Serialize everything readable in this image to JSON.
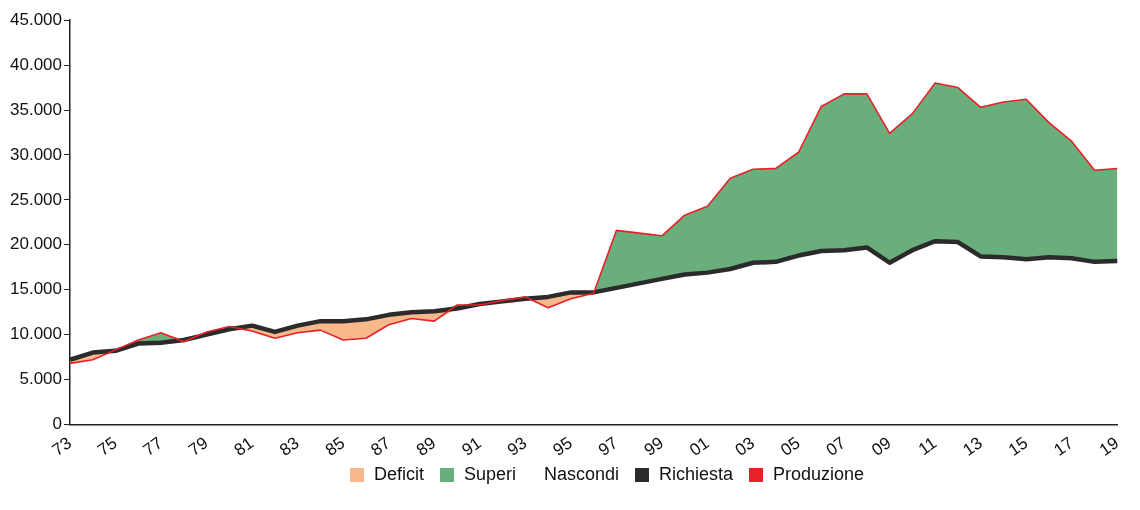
{
  "chart_data": {
    "type": "line",
    "categories": [
      "73",
      null,
      "75",
      null,
      "77",
      null,
      "79",
      null,
      "81",
      null,
      "83",
      null,
      "85",
      null,
      "87",
      null,
      "89",
      null,
      "91",
      null,
      "93",
      null,
      "95",
      null,
      "97",
      null,
      "99",
      null,
      "01",
      null,
      "03",
      null,
      "05",
      null,
      "07",
      null,
      "09",
      null,
      "11",
      null,
      "13",
      null,
      "15",
      null,
      "17",
      null,
      "19"
    ],
    "series": [
      {
        "name": "Deficit",
        "type": "area",
        "color": "#f7b98b",
        "values": [
          null,
          null,
          null,
          null,
          null,
          null,
          null,
          null,
          null,
          null,
          null,
          null,
          null,
          null,
          null,
          null,
          null,
          null,
          null,
          null,
          null,
          null,
          null,
          null,
          null,
          null,
          null,
          null,
          null,
          null,
          null,
          null,
          null,
          null,
          null,
          null,
          null,
          null,
          null,
          null,
          null,
          null,
          null,
          null,
          null,
          null,
          null
        ],
        "lower": [
          6800,
          7200,
          8200,
          9000,
          9100,
          9200,
          10000,
          10600,
          10400,
          9600,
          10200,
          10500,
          9400,
          9600,
          11100,
          11800,
          11500,
          12900,
          13300,
          13700,
          14000,
          13000,
          14000,
          14600,
          15200,
          15700,
          16200,
          16700,
          16900,
          17300,
          18000,
          18100,
          18800,
          19300,
          19400,
          19700,
          18000,
          19400,
          20400,
          20300,
          18700,
          18600,
          18400,
          18600,
          18500,
          18100,
          18200
        ],
        "upper": [
          7200,
          8000,
          8200,
          9000,
          9100,
          9400,
          10000,
          10600,
          11000,
          10300,
          11000,
          11500,
          11500,
          11700,
          12200,
          12500,
          12600,
          12900,
          13400,
          13700,
          14000,
          14200,
          14700,
          14700,
          15200,
          15700,
          16200,
          16700,
          16900,
          17300,
          18000,
          18100,
          18800,
          19300,
          19400,
          19700,
          18000,
          19400,
          20400,
          20300,
          18700,
          18600,
          18400,
          18600,
          18500,
          18100,
          18200
        ]
      },
      {
        "name": "Superi",
        "type": "area",
        "color": "#6aae7c",
        "values": [
          null,
          null,
          null,
          null,
          null,
          null,
          null,
          null,
          null,
          null,
          null,
          null,
          null,
          null,
          null,
          null,
          null,
          null,
          null,
          null,
          null,
          null,
          null,
          null,
          null,
          null,
          null,
          null,
          null,
          null,
          null,
          null,
          null,
          null,
          null,
          null,
          null,
          null,
          null,
          null,
          null,
          null,
          null,
          null,
          null,
          null,
          null
        ],
        "lower": [
          7200,
          8000,
          8200,
          9000,
          9100,
          9400,
          10000,
          10600,
          11000,
          10300,
          11000,
          11500,
          11500,
          11700,
          12200,
          12500,
          12600,
          12900,
          13400,
          13700,
          14000,
          14200,
          14700,
          14700,
          15200,
          15700,
          16200,
          16700,
          16900,
          17300,
          18000,
          18100,
          18800,
          19300,
          19400,
          19700,
          18000,
          19400,
          20400,
          20300,
          18700,
          18600,
          18400,
          18600,
          18500,
          18100,
          18200
        ],
        "upper": [
          7200,
          8000,
          8300,
          9400,
          10200,
          9400,
          10300,
          10900,
          11000,
          10300,
          11000,
          11500,
          11500,
          11700,
          12200,
          12500,
          12600,
          13300,
          13400,
          13800,
          14200,
          14200,
          14700,
          14700,
          21600,
          21300,
          21000,
          23300,
          24300,
          27400,
          28400,
          28500,
          30300,
          35400,
          36800,
          36800,
          32400,
          34600,
          38000,
          37500,
          35300,
          35900,
          36200,
          33600,
          31500,
          28300,
          28500
        ]
      },
      {
        "name": "Richiesta",
        "type": "line",
        "color": "#2b2b2b",
        "values": [
          7200,
          8000,
          8200,
          9000,
          9100,
          9400,
          10000,
          10600,
          11000,
          10300,
          11000,
          11500,
          11500,
          11700,
          12200,
          12500,
          12600,
          12900,
          13400,
          13700,
          14000,
          14200,
          14700,
          14700,
          15200,
          15700,
          16200,
          16700,
          16900,
          17300,
          18000,
          18100,
          18800,
          19300,
          19400,
          19700,
          18000,
          19400,
          20400,
          20300,
          18700,
          18600,
          18400,
          18600,
          18500,
          18100,
          18200
        ]
      },
      {
        "name": "Produzione",
        "type": "line",
        "color": "#e8202a",
        "values": [
          6800,
          7200,
          8300,
          9400,
          10200,
          9200,
          10300,
          10900,
          10400,
          9600,
          10200,
          10500,
          9400,
          9600,
          11100,
          11800,
          11500,
          13300,
          13300,
          13800,
          14200,
          13000,
          14000,
          14600,
          21600,
          21300,
          21000,
          23300,
          24300,
          27400,
          28400,
          28500,
          30300,
          35400,
          36800,
          36800,
          32400,
          34600,
          38000,
          37500,
          35300,
          35900,
          36200,
          33600,
          31500,
          28300,
          28500
        ]
      }
    ],
    "annotations": [
      "Nascondi"
    ],
    "ylim": [
      0,
      45000
    ],
    "yticks": [
      0,
      {
        "value": 5000,
        "label": "5.000"
      },
      {
        "value": 10000,
        "label": "10.000"
      },
      {
        "value": 15000,
        "label": "15.000"
      },
      {
        "value": 20000,
        "label": "20.000"
      },
      {
        "value": 25000,
        "label": "25.000"
      },
      {
        "value": 30000,
        "label": "30.000"
      },
      {
        "value": 35000,
        "label": "35.000"
      },
      {
        "value": 40000,
        "label": "40.000"
      },
      {
        "value": 45000,
        "label": "45.000"
      }
    ],
    "grid": false,
    "legend": "bottom",
    "marker": "none"
  }
}
